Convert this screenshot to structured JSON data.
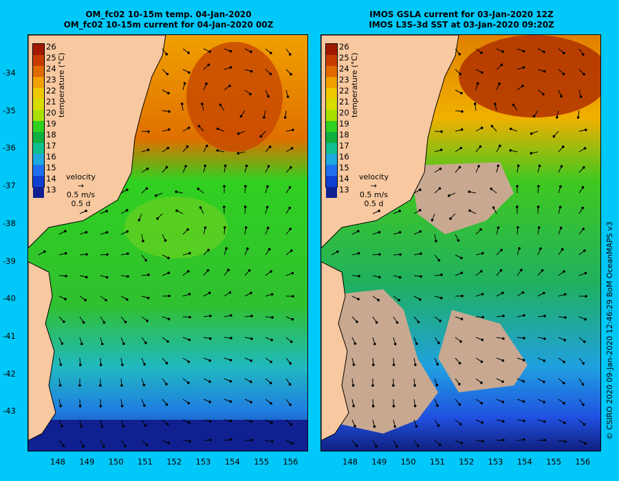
{
  "left_panel": {
    "title_line1": "OM_fc02 10-15m temp. 04-Jan-2020",
    "title_line2": "OM_fc02 10-15m current for 04-Jan-2020 00Z"
  },
  "right_panel": {
    "title_line1": "IMOS GSLA current for 03-Jan-2020 12Z",
    "title_line2": "IMOS L3S-3d SST at 03-Jan-2020 09:20Z"
  },
  "colorbar": {
    "title": "temperature (°C)",
    "ticks": [
      "26",
      "25",
      "24",
      "23",
      "22",
      "21",
      "20",
      "19",
      "18",
      "17",
      "16",
      "15",
      "14",
      "13"
    ],
    "colors": [
      "#a01a00",
      "#c83c00",
      "#e06a00",
      "#f0a000",
      "#f0c800",
      "#d8dc00",
      "#a8e000",
      "#30d020",
      "#10b040",
      "#10c090",
      "#20a8e0",
      "#2070f0",
      "#1040d0",
      "#102090"
    ]
  },
  "velocity_legend": {
    "title": "velocity",
    "speed": "0.5 m/s",
    "time": "0.5 d"
  },
  "y_axis": {
    "ticks": [
      "-34",
      "-35",
      "-36",
      "-37",
      "-38",
      "-39",
      "-40",
      "-41",
      "-42",
      "-43"
    ]
  },
  "x_axis": {
    "ticks": [
      "148",
      "149",
      "150",
      "151",
      "152",
      "153",
      "154",
      "155",
      "156"
    ]
  },
  "credit": "© CSIRO 2020  09-Jan-2020 12:46:29 BoM OceanMAPS v3",
  "colors": {
    "background": "#00c8f8",
    "land": "#f8c8a0",
    "missing": "#c8a890"
  }
}
